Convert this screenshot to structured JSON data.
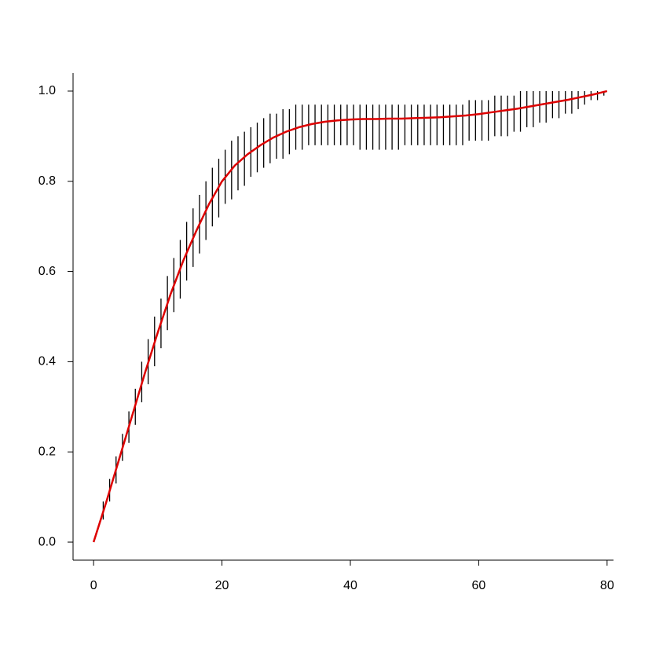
{
  "chart_data": {
    "type": "line",
    "x": [
      0,
      2,
      4,
      6,
      8,
      10,
      12,
      14,
      16,
      18,
      20,
      22,
      24,
      26,
      28,
      30,
      32,
      34,
      36,
      38,
      40,
      42,
      44,
      46,
      48,
      50,
      52,
      54,
      56,
      58,
      60,
      62,
      64,
      66,
      68,
      70,
      72,
      74,
      76,
      78,
      80
    ],
    "series": [
      {
        "color": "#dd0000",
        "values": [
          0,
          0.09,
          0.185,
          0.28,
          0.375,
          0.465,
          0.55,
          0.625,
          0.69,
          0.75,
          0.8,
          0.835,
          0.86,
          0.88,
          0.897,
          0.91,
          0.92,
          0.927,
          0.932,
          0.935,
          0.937,
          0.938,
          0.938,
          0.939,
          0.939,
          0.94,
          0.941,
          0.942,
          0.944,
          0.946,
          0.949,
          0.953,
          0.957,
          0.961,
          0.966,
          0.971,
          0.976,
          0.981,
          0.987,
          0.993,
          1.0
        ]
      }
    ],
    "intervals": {
      "color": "#000000",
      "x": [
        1.5,
        2.5,
        3.5,
        4.5,
        5.5,
        6.5,
        7.5,
        8.5,
        9.5,
        10.5,
        11.5,
        12.5,
        13.5,
        14.5,
        15.5,
        16.5,
        17.5,
        18.5,
        19.5,
        20.5,
        21.5,
        22.5,
        23.5,
        24.5,
        25.5,
        26.5,
        27.5,
        28.5,
        29.5,
        30.5,
        31.5,
        32.5,
        33.5,
        34.5,
        35.5,
        36.5,
        37.5,
        38.5,
        39.5,
        40.5,
        41.5,
        42.5,
        43.5,
        44.5,
        45.5,
        46.5,
        47.5,
        48.5,
        49.5,
        50.5,
        51.5,
        52.5,
        53.5,
        54.5,
        55.5,
        56.5,
        57.5,
        58.5,
        59.5,
        60.5,
        61.5,
        62.5,
        63.5,
        64.5,
        65.5,
        66.5,
        67.5,
        68.5,
        69.5,
        70.5,
        71.5,
        72.5,
        73.5,
        74.5,
        75.5,
        76.5,
        77.5,
        78.5,
        79.5
      ],
      "low": [
        0.05,
        0.09,
        0.13,
        0.18,
        0.22,
        0.26,
        0.31,
        0.35,
        0.39,
        0.43,
        0.47,
        0.51,
        0.54,
        0.58,
        0.61,
        0.64,
        0.67,
        0.7,
        0.72,
        0.75,
        0.76,
        0.78,
        0.79,
        0.81,
        0.82,
        0.83,
        0.84,
        0.85,
        0.85,
        0.86,
        0.87,
        0.87,
        0.88,
        0.88,
        0.88,
        0.88,
        0.88,
        0.88,
        0.88,
        0.88,
        0.87,
        0.87,
        0.87,
        0.87,
        0.87,
        0.87,
        0.87,
        0.88,
        0.88,
        0.88,
        0.88,
        0.88,
        0.88,
        0.88,
        0.88,
        0.88,
        0.88,
        0.89,
        0.89,
        0.89,
        0.89,
        0.9,
        0.9,
        0.9,
        0.91,
        0.91,
        0.92,
        0.92,
        0.93,
        0.93,
        0.94,
        0.94,
        0.95,
        0.95,
        0.96,
        0.97,
        0.98,
        0.98,
        0.99
      ],
      "high": [
        0.09,
        0.14,
        0.19,
        0.24,
        0.29,
        0.34,
        0.4,
        0.45,
        0.5,
        0.54,
        0.59,
        0.63,
        0.67,
        0.71,
        0.74,
        0.77,
        0.8,
        0.83,
        0.85,
        0.87,
        0.89,
        0.9,
        0.91,
        0.92,
        0.93,
        0.94,
        0.95,
        0.95,
        0.96,
        0.96,
        0.97,
        0.97,
        0.97,
        0.97,
        0.97,
        0.97,
        0.97,
        0.97,
        0.97,
        0.97,
        0.97,
        0.97,
        0.97,
        0.97,
        0.97,
        0.97,
        0.97,
        0.97,
        0.97,
        0.97,
        0.97,
        0.97,
        0.97,
        0.97,
        0.97,
        0.97,
        0.97,
        0.98,
        0.98,
        0.98,
        0.98,
        0.99,
        0.99,
        0.99,
        0.99,
        1.0,
        1.0,
        1.0,
        1.0,
        1.0,
        1.0,
        1.0,
        1.0,
        1.0,
        1.0,
        1.0,
        1.0,
        1.0,
        1.0
      ]
    },
    "xlim": [
      -3.2,
      81
    ],
    "ylim": [
      -0.04,
      1.04
    ],
    "xticks": [
      0,
      20,
      40,
      60,
      80
    ],
    "yticks": [
      {
        "value": 0,
        "label": "0.0"
      },
      0.2,
      0.4,
      0.6,
      0.8,
      {
        "value": 1,
        "label": "1.0"
      }
    ]
  }
}
